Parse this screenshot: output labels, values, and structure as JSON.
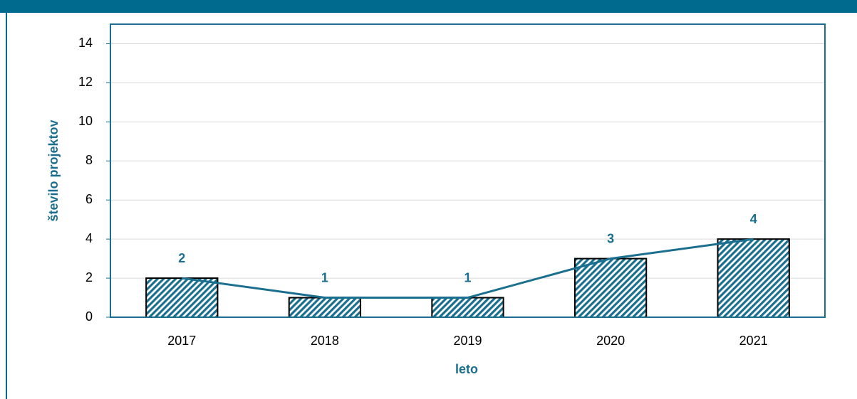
{
  "chart_data": {
    "type": "bar",
    "line": true,
    "x_label": "leto",
    "y_label": "število projektov",
    "categories": [
      "2017",
      "2018",
      "2019",
      "2020",
      "2021"
    ],
    "values": [
      2,
      1,
      1,
      3,
      4
    ],
    "color": "#1a6f8e",
    "ylim": [
      0,
      15
    ],
    "yticks": [
      0,
      2,
      4,
      6,
      8,
      10,
      12,
      14
    ],
    "grid": true
  }
}
